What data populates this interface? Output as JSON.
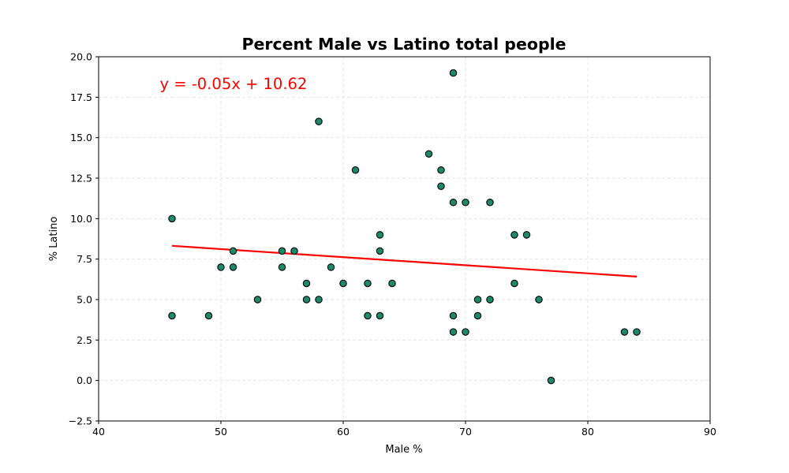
{
  "chart_data": {
    "type": "scatter",
    "title": "Percent Male vs Latino total people",
    "xlabel": "Male %",
    "ylabel": "% Latino",
    "xlim": [
      40,
      90
    ],
    "ylim": [
      -2.5,
      20.0
    ],
    "xticks": [
      40,
      50,
      60,
      70,
      80,
      90
    ],
    "xtick_labels": [
      "40",
      "50",
      "60",
      "70",
      "80",
      "90"
    ],
    "yticks": [
      -2.5,
      0.0,
      2.5,
      5.0,
      7.5,
      10.0,
      12.5,
      15.0,
      17.5,
      20.0
    ],
    "ytick_labels": [
      "−2.5",
      "0.0",
      "2.5",
      "5.0",
      "7.5",
      "10.0",
      "12.5",
      "15.0",
      "17.5",
      "20.0"
    ],
    "grid": true,
    "marker_color": "#1a8a6a",
    "marker_edge_color": "#000000",
    "points": [
      {
        "x": 46,
        "y": 10
      },
      {
        "x": 46,
        "y": 4
      },
      {
        "x": 49,
        "y": 4
      },
      {
        "x": 50,
        "y": 7
      },
      {
        "x": 51,
        "y": 8
      },
      {
        "x": 51,
        "y": 7
      },
      {
        "x": 53,
        "y": 5
      },
      {
        "x": 55,
        "y": 8
      },
      {
        "x": 55,
        "y": 7
      },
      {
        "x": 56,
        "y": 8
      },
      {
        "x": 57,
        "y": 6
      },
      {
        "x": 57,
        "y": 5
      },
      {
        "x": 58,
        "y": 16
      },
      {
        "x": 58,
        "y": 5
      },
      {
        "x": 59,
        "y": 7
      },
      {
        "x": 60,
        "y": 6
      },
      {
        "x": 61,
        "y": 13
      },
      {
        "x": 62,
        "y": 6
      },
      {
        "x": 62,
        "y": 4
      },
      {
        "x": 63,
        "y": 9
      },
      {
        "x": 63,
        "y": 8
      },
      {
        "x": 63,
        "y": 4
      },
      {
        "x": 64,
        "y": 6
      },
      {
        "x": 67,
        "y": 14
      },
      {
        "x": 68,
        "y": 13
      },
      {
        "x": 68,
        "y": 12
      },
      {
        "x": 69,
        "y": 19
      },
      {
        "x": 69,
        "y": 11
      },
      {
        "x": 69,
        "y": 4
      },
      {
        "x": 69,
        "y": 3
      },
      {
        "x": 70,
        "y": 11
      },
      {
        "x": 70,
        "y": 3
      },
      {
        "x": 71,
        "y": 5
      },
      {
        "x": 71,
        "y": 4
      },
      {
        "x": 72,
        "y": 11
      },
      {
        "x": 72,
        "y": 5
      },
      {
        "x": 74,
        "y": 9
      },
      {
        "x": 74,
        "y": 6
      },
      {
        "x": 75,
        "y": 9
      },
      {
        "x": 76,
        "y": 5
      },
      {
        "x": 77,
        "y": 0
      },
      {
        "x": 83,
        "y": 3
      },
      {
        "x": 84,
        "y": 3
      }
    ],
    "regression": {
      "slope": -0.05,
      "intercept": 10.62,
      "x_range": [
        46,
        84
      ],
      "color": "#ff0000",
      "equation_label": "y = -0.05x + 10.62",
      "label_at": {
        "x": 45,
        "y": 18
      }
    }
  }
}
